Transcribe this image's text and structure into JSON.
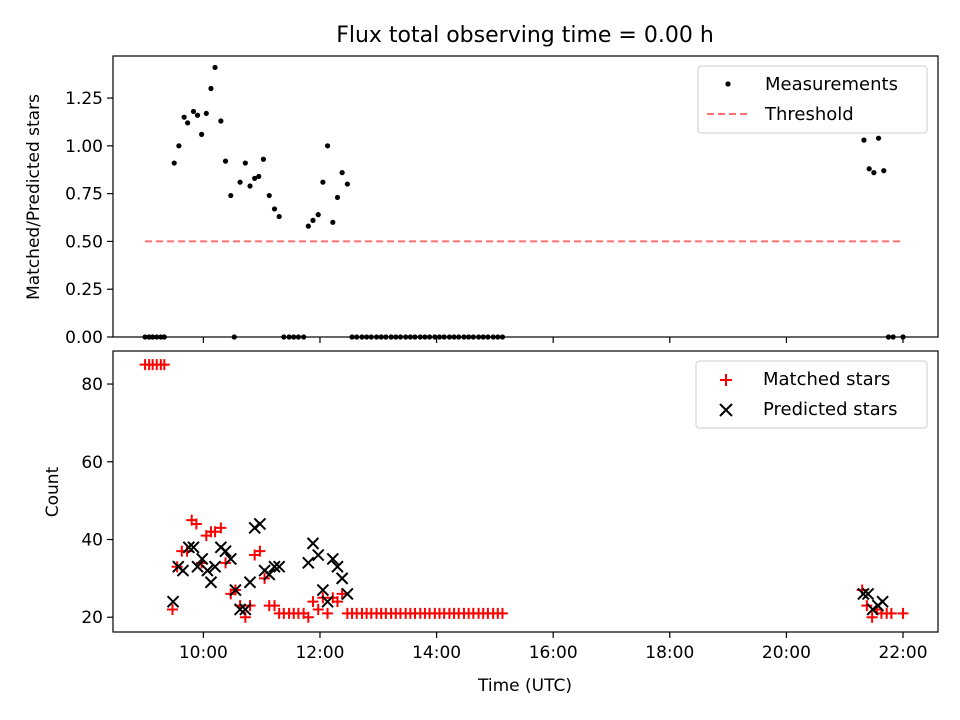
{
  "figure": {
    "title": "Flux total observing time = 0.00 h"
  },
  "chart_data": [
    {
      "type": "scatter",
      "panel": "top",
      "ylabel": "Matched/Predicted stars",
      "ylim": [
        0,
        1.47
      ],
      "xlim_hours": [
        8.45,
        22.6
      ],
      "yticks": [
        0.0,
        0.25,
        0.5,
        0.75,
        1.0,
        1.25
      ],
      "ytick_labels": [
        "0.00",
        "0.25",
        "0.50",
        "0.75",
        "1.00",
        "1.25"
      ],
      "legend_position": "top-right",
      "series": [
        {
          "name": "Measurements",
          "marker": "dot",
          "color": "#000000",
          "x": [
            9.0,
            9.07,
            9.13,
            9.2,
            9.27,
            9.33,
            9.5,
            9.58,
            9.67,
            9.73,
            9.83,
            9.9,
            9.97,
            10.05,
            10.13,
            10.2,
            10.3,
            10.38,
            10.47,
            10.53,
            10.63,
            10.72,
            10.8,
            10.88,
            10.95,
            11.03,
            11.13,
            11.22,
            11.3,
            11.38,
            11.47,
            11.55,
            11.63,
            11.72,
            11.8,
            11.88,
            11.97,
            12.05,
            12.13,
            12.22,
            12.3,
            12.38,
            12.47,
            12.55,
            12.63,
            12.72,
            12.8,
            12.88,
            12.97,
            13.05,
            13.13,
            13.22,
            13.3,
            13.38,
            13.47,
            13.55,
            13.63,
            13.72,
            13.8,
            13.88,
            13.97,
            14.05,
            14.13,
            14.22,
            14.3,
            14.38,
            14.47,
            14.55,
            14.63,
            14.72,
            14.8,
            14.88,
            14.97,
            15.05,
            15.13,
            21.33,
            21.42,
            21.5,
            21.58,
            21.67,
            21.75,
            21.83,
            22.0
          ],
          "y": [
            0.0,
            0.0,
            0.0,
            0.0,
            0.0,
            0.0,
            0.91,
            1.0,
            1.15,
            1.12,
            1.18,
            1.16,
            1.06,
            1.17,
            1.3,
            1.41,
            1.13,
            0.92,
            0.74,
            0.0,
            0.81,
            0.91,
            0.79,
            0.83,
            0.84,
            0.93,
            0.74,
            0.67,
            0.63,
            0.0,
            0.0,
            0.0,
            0.0,
            0.0,
            0.58,
            0.61,
            0.64,
            0.81,
            1.0,
            0.6,
            0.73,
            0.86,
            0.8,
            0.0,
            0.0,
            0.0,
            0.0,
            0.0,
            0.0,
            0.0,
            0.0,
            0.0,
            0.0,
            0.0,
            0.0,
            0.0,
            0.0,
            0.0,
            0.0,
            0.0,
            0.0,
            0.0,
            0.0,
            0.0,
            0.0,
            0.0,
            0.0,
            0.0,
            0.0,
            0.0,
            0.0,
            0.0,
            0.0,
            0.0,
            0.0,
            1.03,
            0.88,
            0.86,
            1.04,
            0.87,
            0.0,
            0.0,
            0.0
          ]
        },
        {
          "name": "Threshold",
          "line_style": "dashed",
          "color": "#ff7070",
          "x": [
            9.0,
            22.0
          ],
          "y": [
            0.5,
            0.5
          ]
        }
      ]
    },
    {
      "type": "scatter",
      "panel": "bottom",
      "xlabel": "Time (UTC)",
      "ylabel": "Count",
      "ylim": [
        16.2,
        88.5
      ],
      "xlim_hours": [
        8.45,
        22.6
      ],
      "yticks": [
        20,
        40,
        60,
        80
      ],
      "ytick_labels": [
        "20",
        "40",
        "60",
        "80"
      ],
      "xticks_hours": [
        10,
        12,
        14,
        16,
        18,
        20,
        22
      ],
      "xtick_labels": [
        "10:00",
        "12:00",
        "14:00",
        "16:00",
        "18:00",
        "20:00",
        "22:00"
      ],
      "legend_position": "top-right",
      "series": [
        {
          "name": "Matched stars",
          "marker": "plus",
          "color": "#ff0000",
          "x": [
            9.0,
            9.07,
            9.13,
            9.2,
            9.27,
            9.33,
            9.47,
            9.55,
            9.63,
            9.72,
            9.8,
            9.88,
            9.97,
            10.05,
            10.13,
            10.2,
            10.3,
            10.38,
            10.47,
            10.55,
            10.63,
            10.72,
            10.8,
            10.88,
            10.97,
            11.05,
            11.13,
            11.22,
            11.3,
            11.38,
            11.47,
            11.55,
            11.63,
            11.72,
            11.8,
            11.88,
            11.97,
            12.05,
            12.13,
            12.22,
            12.3,
            12.38,
            12.47,
            12.55,
            12.63,
            12.72,
            12.8,
            12.88,
            12.97,
            13.05,
            13.13,
            13.22,
            13.3,
            13.38,
            13.47,
            13.55,
            13.63,
            13.72,
            13.8,
            13.88,
            13.97,
            14.05,
            14.13,
            14.22,
            14.3,
            14.38,
            14.47,
            14.55,
            14.63,
            14.72,
            14.8,
            14.88,
            14.97,
            15.05,
            15.13,
            21.3,
            21.38,
            21.47,
            21.55,
            21.63,
            21.72,
            21.8,
            22.0
          ],
          "y": [
            85,
            85,
            85,
            85,
            85,
            85,
            22,
            33,
            37,
            37,
            45,
            44,
            34,
            41,
            42,
            42,
            43,
            34,
            26,
            27,
            23,
            20,
            23,
            36,
            37,
            30,
            23,
            23,
            21,
            21,
            21,
            21,
            21,
            21,
            20,
            24,
            22,
            25,
            21,
            25,
            24,
            26,
            21,
            21,
            21,
            21,
            21,
            21,
            21,
            21,
            21,
            21,
            21,
            21,
            21,
            21,
            21,
            21,
            21,
            21,
            21,
            21,
            21,
            21,
            21,
            21,
            21,
            21,
            21,
            21,
            21,
            21,
            21,
            21,
            21,
            27,
            23,
            20,
            22,
            21,
            21,
            21,
            21
          ]
        },
        {
          "name": "Predicted stars",
          "marker": "x",
          "color": "#000000",
          "x": [
            9.48,
            9.57,
            9.65,
            9.75,
            9.83,
            9.9,
            9.98,
            10.07,
            10.13,
            10.2,
            10.3,
            10.38,
            10.47,
            10.55,
            10.63,
            10.72,
            10.8,
            10.88,
            10.97,
            11.05,
            11.13,
            11.22,
            11.3,
            11.8,
            11.88,
            11.97,
            12.05,
            12.13,
            12.22,
            12.3,
            12.38,
            12.47,
            21.32,
            21.4,
            21.48,
            21.57,
            21.65
          ],
          "y": [
            24,
            33,
            32,
            38,
            38,
            33,
            35,
            32,
            29,
            33,
            38,
            37,
            35,
            27,
            22,
            22,
            29,
            43,
            44,
            32,
            31,
            33,
            33,
            34,
            39,
            36,
            27,
            24,
            35,
            33,
            30,
            26,
            26,
            26,
            22,
            23,
            24
          ]
        }
      ]
    }
  ]
}
